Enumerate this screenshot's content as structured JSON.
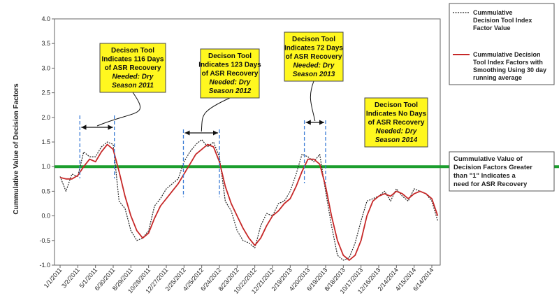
{
  "chart_data": {
    "type": "line",
    "title": "",
    "xlabel": "",
    "ylabel": "Cummulative Value of Decision Factors",
    "ylim": [
      -1.0,
      4.0
    ],
    "y_ticks": [
      "4.0",
      "3.5",
      "3.0",
      "2.5",
      "2.0",
      "1.5",
      "1.0",
      "0.5",
      "0.0",
      "-0.5",
      "-1.0"
    ],
    "x_tick_labels": [
      "1/1/2011",
      "3/2/2011",
      "5/1/2011",
      "6/30/2011",
      "8/29/2011",
      "10/28/2011",
      "12/27/2011",
      "2/25/2012",
      "4/25/2012",
      "6/24/2012",
      "8/23/2012",
      "10/22/2012",
      "12/21/2012",
      "2/19/2013",
      "4/20/2013",
      "6/19/2013",
      "8/18/2013",
      "10/17/2013",
      "12/16/2013",
      "2/14/2014",
      "4/15/2014",
      "6/14/2014"
    ],
    "grid": false,
    "legend_position": "right",
    "series": [
      {
        "name": "Cummulative Decision Tool Index Factor Value",
        "color": "#222222",
        "style": "dotted",
        "x": [
          "1/1/2011",
          "1/21/2011",
          "2/10/2011",
          "3/2/2011",
          "3/22/2011",
          "4/11/2011",
          "5/1/2011",
          "5/21/2011",
          "6/10/2011",
          "6/30/2011",
          "7/20/2011",
          "8/9/2011",
          "8/29/2011",
          "9/18/2011",
          "10/8/2011",
          "10/28/2011",
          "11/17/2011",
          "12/7/2011",
          "12/27/2011",
          "1/16/2012",
          "2/5/2012",
          "2/25/2012",
          "3/16/2012",
          "4/5/2012",
          "4/25/2012",
          "5/15/2012",
          "6/4/2012",
          "6/24/2012",
          "7/14/2012",
          "8/3/2012",
          "8/23/2012",
          "9/12/2012",
          "10/2/2012",
          "10/22/2012",
          "11/11/2012",
          "12/1/2012",
          "12/21/2012",
          "1/10/2013",
          "1/30/2013",
          "2/19/2013",
          "3/11/2013",
          "3/31/2013",
          "4/20/2013",
          "5/10/2013",
          "5/30/2013",
          "6/19/2013",
          "7/9/2013",
          "7/29/2013",
          "8/18/2013",
          "9/7/2013",
          "9/27/2013",
          "10/17/2013",
          "11/6/2013",
          "11/26/2013",
          "12/16/2013",
          "1/5/2014",
          "1/25/2014",
          "2/14/2014",
          "3/6/2014",
          "3/26/2014",
          "4/15/2014",
          "5/5/2014",
          "5/25/2014",
          "6/14/2014",
          "7/4/2014"
        ],
        "values": [
          0.8,
          0.5,
          0.85,
          0.8,
          1.3,
          1.2,
          1.2,
          1.4,
          1.5,
          1.45,
          0.3,
          0.15,
          -0.3,
          -0.5,
          -0.45,
          -0.3,
          0.2,
          0.35,
          0.55,
          0.65,
          0.75,
          1.1,
          1.3,
          1.45,
          1.55,
          1.4,
          1.5,
          1.2,
          0.3,
          0.1,
          -0.3,
          -0.5,
          -0.55,
          -0.65,
          -0.2,
          0.05,
          0.0,
          0.25,
          0.3,
          0.5,
          0.85,
          1.25,
          1.2,
          1.1,
          1.25,
          0.5,
          -0.2,
          -0.8,
          -0.9,
          -0.85,
          -0.55,
          -0.1,
          0.3,
          0.35,
          0.4,
          0.5,
          0.3,
          0.55,
          0.4,
          0.3,
          0.55,
          0.5,
          0.45,
          0.3,
          -0.1
        ]
      },
      {
        "name": "Cummulative Decision Tool Index Factors with Smoothing Using 30 day running average",
        "color": "#c62828",
        "style": "solid",
        "x": [
          "1/1/2011",
          "1/21/2011",
          "2/10/2011",
          "3/2/2011",
          "3/22/2011",
          "4/11/2011",
          "5/1/2011",
          "5/21/2011",
          "6/10/2011",
          "6/30/2011",
          "7/20/2011",
          "8/9/2011",
          "8/29/2011",
          "9/18/2011",
          "10/8/2011",
          "10/28/2011",
          "11/17/2011",
          "12/7/2011",
          "12/27/2011",
          "1/16/2012",
          "2/5/2012",
          "2/25/2012",
          "3/16/2012",
          "4/5/2012",
          "4/25/2012",
          "5/15/2012",
          "6/4/2012",
          "6/24/2012",
          "7/14/2012",
          "8/3/2012",
          "8/23/2012",
          "9/12/2012",
          "10/2/2012",
          "10/22/2012",
          "11/11/2012",
          "12/1/2012",
          "12/21/2012",
          "1/10/2013",
          "1/30/2013",
          "2/19/2013",
          "3/11/2013",
          "3/31/2013",
          "4/20/2013",
          "5/10/2013",
          "5/30/2013",
          "6/19/2013",
          "7/9/2013",
          "7/29/2013",
          "8/18/2013",
          "9/7/2013",
          "9/27/2013",
          "10/17/2013",
          "11/6/2013",
          "11/26/2013",
          "12/16/2013",
          "1/5/2014",
          "1/25/2014",
          "2/14/2014",
          "3/6/2014",
          "3/26/2014",
          "4/15/2014",
          "5/5/2014",
          "5/25/2014",
          "6/14/2014",
          "7/4/2014"
        ],
        "values": [
          0.78,
          0.75,
          0.75,
          0.82,
          1.0,
          1.15,
          1.1,
          1.3,
          1.45,
          1.35,
          0.9,
          0.4,
          0.0,
          -0.3,
          -0.45,
          -0.35,
          -0.05,
          0.2,
          0.35,
          0.5,
          0.65,
          0.85,
          1.05,
          1.25,
          1.35,
          1.45,
          1.4,
          1.1,
          0.6,
          0.25,
          0.0,
          -0.25,
          -0.45,
          -0.6,
          -0.45,
          -0.2,
          0.0,
          0.1,
          0.25,
          0.35,
          0.6,
          0.9,
          1.15,
          1.15,
          1.05,
          0.6,
          0.0,
          -0.5,
          -0.8,
          -0.9,
          -0.8,
          -0.5,
          0.0,
          0.3,
          0.4,
          0.45,
          0.4,
          0.5,
          0.45,
          0.35,
          0.45,
          0.5,
          0.45,
          0.35,
          0.0
        ]
      }
    ],
    "threshold_line": {
      "value": 1.0,
      "color": "#1b9e2e"
    },
    "callouts": [
      {
        "lines": [
          "Decison Tool",
          "Indicates 116 Days",
          "of ASR Recovery",
          "Needed: Dry",
          "Season 2011"
        ],
        "italic_from": 3,
        "start": "3/9/2011",
        "end": "7/4/2011"
      },
      {
        "lines": [
          "Decison Tool",
          "Indicates 123 Days",
          "of ASR Recovery",
          "Needed: Dry",
          "Season 2012"
        ],
        "italic_from": 3,
        "start": "2/23/2012",
        "end": "6/24/2012"
      },
      {
        "lines": [
          "Decison Tool",
          "Indicates 72 Days",
          "of ASR Recovery",
          "Needed: Dry",
          "Season 2013"
        ],
        "italic_from": 3,
        "start": "4/8/2013",
        "end": "6/19/2013"
      },
      {
        "lines": [
          "Decison Tool",
          "Indicates No Days",
          "of ASR Recovery",
          "Needed: Dry",
          "Season 2014"
        ],
        "italic_from": 3
      }
    ],
    "legend_lines": [
      [
        "Cummulative",
        "Decision Tool Index",
        "Factor Value"
      ],
      [
        "Cummulative Decision",
        "Tool Index Factors with",
        "Smoothing Using 30 day",
        "running average"
      ]
    ],
    "note_lines": [
      "Cummulative Value of",
      "Decision Factors Greater",
      "than \"1\" Indicates a",
      "need for ASR Recovery"
    ]
  }
}
